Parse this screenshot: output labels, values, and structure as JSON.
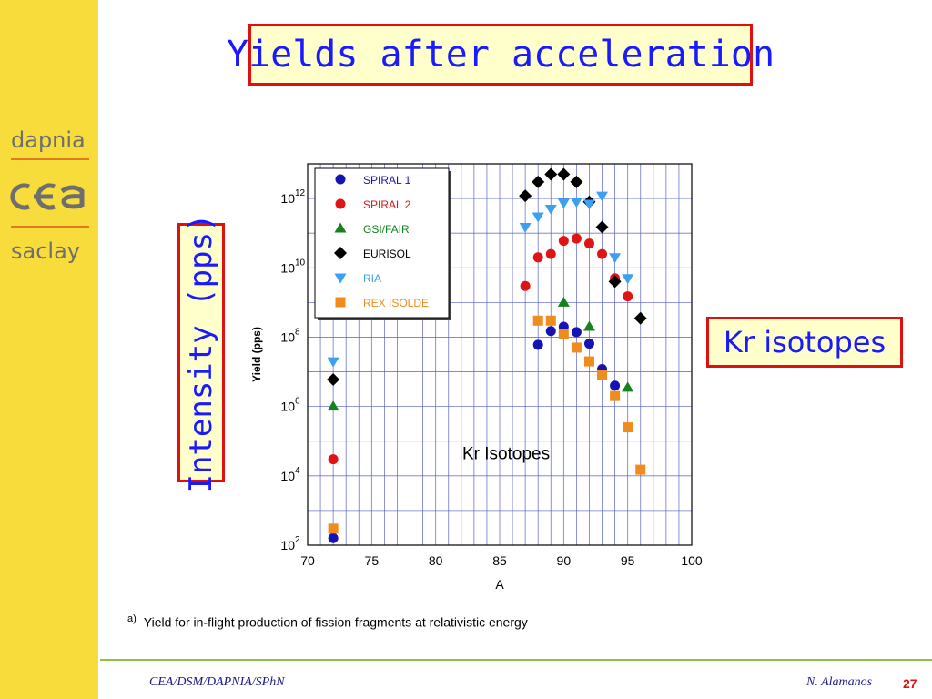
{
  "sidebar": {
    "logo_top": "dapnia",
    "logo_bottom": "saclay",
    "logo_mark": "cea"
  },
  "title": "Yields after acceleration",
  "intensity_label": "Intensity (pps)",
  "kr_label": "Kr isotopes",
  "caption": {
    "marker": "a)",
    "text": "Yield for in-flight production of fission fragments at relativistic energy"
  },
  "footer": {
    "left": "CEA/DSM/DAPNIA/SPhN",
    "author": "N. Alamanos",
    "page": "27"
  },
  "colors": {
    "accent_red": "#e01010",
    "text_blue": "#1a1aff",
    "sidebar_yellow": "#f7dc3c",
    "box_fill": "#ffffcc"
  },
  "chart_data": {
    "type": "scatter",
    "xlabel": "A",
    "ylabel": "Yield (pps)",
    "annotation": "Kr Isotopes",
    "xlim": [
      70,
      100
    ],
    "xticks": [
      70,
      75,
      80,
      85,
      90,
      95,
      100
    ],
    "ylog": true,
    "ylim": [
      100,
      10000000000000.0
    ],
    "yticks": [
      {
        "value": 100,
        "base": "10",
        "exp": "2"
      },
      {
        "value": 10000,
        "base": "10",
        "exp": "4"
      },
      {
        "value": 1000000,
        "base": "10",
        "exp": "6"
      },
      {
        "value": 100000000,
        "base": "10",
        "exp": "8"
      },
      {
        "value": 10000000000,
        "base": "10",
        "exp": "10"
      },
      {
        "value": 1000000000000,
        "base": "10",
        "exp": "12"
      }
    ],
    "grid": true,
    "legend_position": "top-left",
    "series": [
      {
        "name": "SPIRAL 1",
        "color": "#1414b4",
        "marker": "circle",
        "points": [
          [
            72,
            160
          ],
          [
            88,
            60000000.0
          ],
          [
            89,
            150000000.0
          ],
          [
            90,
            200000000.0
          ],
          [
            91,
            140000000.0
          ],
          [
            92,
            65000000.0
          ],
          [
            93,
            12000000.0
          ],
          [
            94,
            4000000.0
          ]
        ]
      },
      {
        "name": "SPIRAL 2",
        "color": "#e01414",
        "marker": "circle",
        "points": [
          [
            72,
            30000
          ],
          [
            87,
            3000000000.0
          ],
          [
            88,
            20000000000.0
          ],
          [
            89,
            25000000000.0
          ],
          [
            90,
            60000000000.0
          ],
          [
            91,
            70000000000.0
          ],
          [
            92,
            50000000000.0
          ],
          [
            93,
            25000000000.0
          ],
          [
            94,
            5000000000.0
          ],
          [
            95,
            1500000000.0
          ]
        ]
      },
      {
        "name": "GSI/FAIR",
        "color": "#14821e",
        "marker": "triangle-up",
        "points": [
          [
            72,
            1000000.0
          ],
          [
            90,
            1000000000.0
          ],
          [
            92,
            200000000.0
          ],
          [
            95,
            3500000.0
          ]
        ]
      },
      {
        "name": "EURISOL",
        "color": "#000000",
        "marker": "diamond",
        "points": [
          [
            72,
            6000000.0
          ],
          [
            87,
            1200000000000.0
          ],
          [
            88,
            3000000000000.0
          ],
          [
            89,
            5000000000000.0
          ],
          [
            90,
            5000000000000.0
          ],
          [
            91,
            3000000000000.0
          ],
          [
            92,
            800000000000.0
          ],
          [
            93,
            150000000000.0
          ],
          [
            94,
            4000000000.0
          ],
          [
            96,
            350000000.0
          ]
        ]
      },
      {
        "name": "RIA",
        "color": "#3ca0f0",
        "marker": "triangle-down",
        "points": [
          [
            72,
            20000000.0
          ],
          [
            87,
            150000000000.0
          ],
          [
            88,
            300000000000.0
          ],
          [
            89,
            500000000000.0
          ],
          [
            90,
            750000000000.0
          ],
          [
            91,
            800000000000.0
          ],
          [
            92,
            700000000000.0
          ],
          [
            93,
            1200000000000.0
          ],
          [
            94,
            20000000000.0
          ],
          [
            95,
            5000000000.0
          ]
        ]
      },
      {
        "name": "REX ISOLDE",
        "color": "#f08c1e",
        "marker": "square",
        "points": [
          [
            72,
            300
          ],
          [
            88,
            300000000.0
          ],
          [
            89,
            300000000.0
          ],
          [
            90,
            120000000.0
          ],
          [
            91,
            50000000.0
          ],
          [
            92,
            20000000.0
          ],
          [
            93,
            8000000.0
          ],
          [
            94,
            2000000.0
          ],
          [
            95,
            250000.0
          ],
          [
            96,
            15000
          ]
        ]
      }
    ]
  }
}
